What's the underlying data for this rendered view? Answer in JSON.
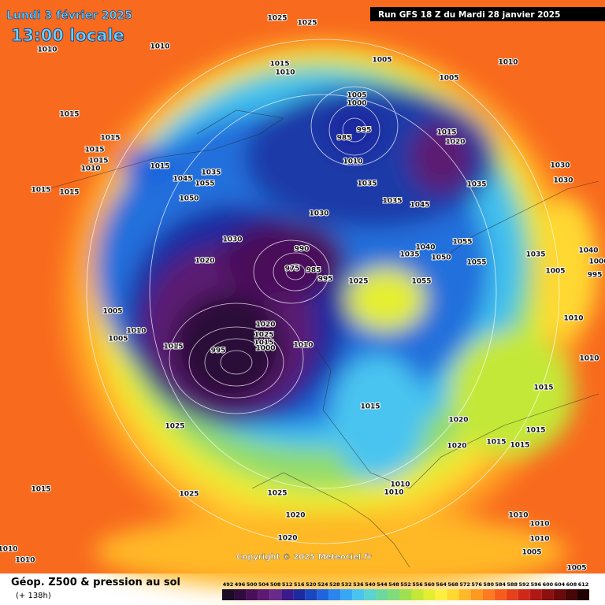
{
  "header": {
    "date": "Lundi 3 février 2025",
    "time": "13:00 locale",
    "run": "Run GFS 18 Z du Mardi 28 janvier 2025"
  },
  "copyright": "Copyright © 2025 Meteociel.fr",
  "footer": {
    "title": "Géop. Z500 & pression au sol",
    "subtitle": "(+ 138h)"
  },
  "legend": {
    "ticks": [
      492,
      496,
      500,
      504,
      508,
      512,
      516,
      520,
      524,
      528,
      532,
      536,
      540,
      544,
      548,
      552,
      556,
      560,
      564,
      568,
      572,
      576,
      580,
      584,
      588,
      592,
      596,
      600,
      604,
      608,
      612
    ],
    "colors": [
      "#1b0b24",
      "#300b3f",
      "#48105a",
      "#5c1a72",
      "#6a2a8a",
      "#3a1a8c",
      "#1c2aa0",
      "#1a46c0",
      "#1e64dc",
      "#2a86ee",
      "#38a8f6",
      "#48c4f0",
      "#5ad4d0",
      "#6cd8a0",
      "#80dc78",
      "#a0e050",
      "#c4e838",
      "#e4ee30",
      "#fff040",
      "#ffd830",
      "#ffb828",
      "#ff9820",
      "#ff7a20",
      "#f85c1c",
      "#e8401a",
      "#d02818",
      "#b01818",
      "#8c1010",
      "#6a0a0a",
      "#460606",
      "#200202"
    ]
  },
  "pressure_labels": [
    "1025",
    "1025",
    "1010",
    "1010",
    "1015",
    "1010",
    "1005",
    "1010",
    "1005",
    "1005",
    "1000",
    "995",
    "985",
    "1015",
    "1020",
    "1015",
    "1015",
    "1015",
    "1015",
    "1010",
    "1015",
    "1035",
    "1045",
    "1055",
    "1050",
    "1010",
    "1035",
    "1035",
    "1045",
    "1035",
    "1030",
    "1030",
    "1015",
    "1015",
    "1030",
    "1030",
    "1020",
    "990",
    "975",
    "985",
    "995",
    "1025",
    "1040",
    "1050",
    "1035",
    "1055",
    "1055",
    "1055",
    "1035",
    "1040",
    "1000",
    "1005",
    "995",
    "1005",
    "1010",
    "1005",
    "1015",
    "995",
    "1020",
    "1025",
    "1015",
    "1000",
    "1010",
    "1015",
    "1010",
    "1010",
    "1015",
    "1020",
    "1015",
    "1015",
    "1015",
    "1020",
    "1025",
    "1015",
    "1025",
    "1025",
    "1010",
    "1010",
    "1020",
    "1020",
    "1010",
    "1010",
    "1010",
    "1005",
    "1005",
    "1010",
    "1010"
  ]
}
